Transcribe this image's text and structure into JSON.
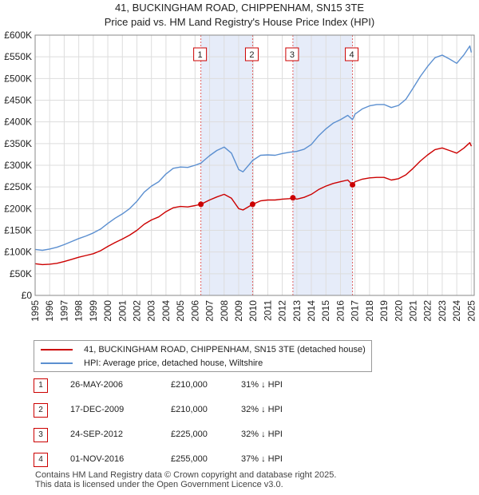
{
  "title_line1": "41, BUCKINGHAM ROAD, CHIPPENHAM, SN15 3TE",
  "title_line2": "Price paid vs. HM Land Registry's House Price Index (HPI)",
  "legend": {
    "red_label": "41, BUCKINGHAM ROAD, CHIPPENHAM, SN15 3TE (detached house)",
    "blue_label": "HPI: Average price, detached house, Wiltshire"
  },
  "colors": {
    "red": "#cc0000",
    "blue": "#5b8fd0",
    "shade": "#dde6f7",
    "grid": "#dddddd"
  },
  "transactions": [
    {
      "num": "1",
      "date": "26-MAY-2006",
      "price": "£210,000",
      "hpi": "31% ↓ HPI"
    },
    {
      "num": "2",
      "date": "17-DEC-2009",
      "price": "£210,000",
      "hpi": "32% ↓ HPI"
    },
    {
      "num": "3",
      "date": "24-SEP-2012",
      "price": "£225,000",
      "hpi": "32% ↓ HPI"
    },
    {
      "num": "4",
      "date": "01-NOV-2016",
      "price": "£255,000",
      "hpi": "37% ↓ HPI"
    }
  ],
  "footer": {
    "line1": "Contains HM Land Registry data © Crown copyright and database right 2025.",
    "line2": "This data is licensed under the Open Government Licence v3.0."
  },
  "chart_data": {
    "type": "line",
    "title": "Price paid vs. HM Land Registry's House Price Index (HPI)",
    "xlim": [
      1995,
      2025.2
    ],
    "ylim": [
      0,
      600000
    ],
    "x_ticks": [
      "1995",
      "1996",
      "1997",
      "1998",
      "1999",
      "2000",
      "2001",
      "2002",
      "2003",
      "2004",
      "2005",
      "2006",
      "2007",
      "2008",
      "2009",
      "2010",
      "2011",
      "2012",
      "2013",
      "2014",
      "2015",
      "2016",
      "2017",
      "2018",
      "2019",
      "2020",
      "2021",
      "2022",
      "2023",
      "2024",
      "2025"
    ],
    "y_ticks": [
      {
        "v": 0,
        "label": "£0"
      },
      {
        "v": 50000,
        "label": "£50K"
      },
      {
        "v": 100000,
        "label": "£100K"
      },
      {
        "v": 150000,
        "label": "£150K"
      },
      {
        "v": 200000,
        "label": "£200K"
      },
      {
        "v": 250000,
        "label": "£250K"
      },
      {
        "v": 300000,
        "label": "£300K"
      },
      {
        "v": 350000,
        "label": "£350K"
      },
      {
        "v": 400000,
        "label": "£400K"
      },
      {
        "v": 450000,
        "label": "£450K"
      },
      {
        "v": 500000,
        "label": "£500K"
      },
      {
        "v": 550000,
        "label": "£550K"
      },
      {
        "v": 600000,
        "label": "£600K"
      }
    ],
    "shaded_regions": [
      [
        2006.4,
        2009.96
      ],
      [
        2012.73,
        2016.83
      ]
    ],
    "series": [
      {
        "name": "HPI: Average price, detached house, Wiltshire",
        "color": "#5b8fd0",
        "x": [
          1995,
          1995.5,
          1996,
          1996.5,
          1997,
          1997.5,
          1998,
          1998.5,
          1999,
          1999.5,
          2000,
          2000.5,
          2001,
          2001.5,
          2002,
          2002.5,
          2003,
          2003.5,
          2004,
          2004.5,
          2005,
          2005.5,
          2006,
          2006.4,
          2007,
          2007.5,
          2008,
          2008.5,
          2009,
          2009.3,
          2009.96,
          2010.5,
          2011,
          2011.5,
          2012,
          2012.5,
          2012.73,
          2013,
          2013.5,
          2014,
          2014.5,
          2015,
          2015.5,
          2016,
          2016.5,
          2016.83,
          2017,
          2017.5,
          2018,
          2018.5,
          2019,
          2019.5,
          2020,
          2020.5,
          2021,
          2021.5,
          2022,
          2022.5,
          2023,
          2023.5,
          2024,
          2024.5,
          2024.9,
          2025
        ],
        "y": [
          106000,
          104000,
          107000,
          111000,
          117000,
          124000,
          131000,
          137000,
          144000,
          153000,
          166000,
          178000,
          188000,
          200000,
          217000,
          238000,
          252000,
          262000,
          280000,
          293000,
          296000,
          295000,
          300000,
          305000,
          322000,
          334000,
          342000,
          328000,
          290000,
          285000,
          311000,
          323000,
          324000,
          323000,
          327000,
          330000,
          331000,
          332000,
          337000,
          348000,
          368000,
          384000,
          397000,
          405000,
          415000,
          405000,
          418000,
          430000,
          437000,
          440000,
          440000,
          433000,
          438000,
          452000,
          478000,
          505000,
          528000,
          548000,
          554000,
          545000,
          535000,
          555000,
          575000,
          560000
        ]
      },
      {
        "name": "41, BUCKINGHAM ROAD, CHIPPENHAM, SN15 3TE (detached house)",
        "color": "#cc0000",
        "x": [
          1995,
          1995.5,
          1996,
          1996.5,
          1997,
          1997.5,
          1998,
          1998.5,
          1999,
          1999.5,
          2000,
          2000.5,
          2001,
          2001.5,
          2002,
          2002.5,
          2003,
          2003.5,
          2004,
          2004.5,
          2005,
          2005.5,
          2006,
          2006.4,
          2007,
          2007.5,
          2008,
          2008.5,
          2009,
          2009.3,
          2009.96,
          2010.5,
          2011,
          2011.5,
          2012,
          2012.5,
          2012.73,
          2013,
          2013.5,
          2014,
          2014.5,
          2015,
          2015.5,
          2016,
          2016.5,
          2016.83,
          2017,
          2017.5,
          2018,
          2018.5,
          2019,
          2019.5,
          2020,
          2020.5,
          2021,
          2021.5,
          2022,
          2022.5,
          2023,
          2023.5,
          2024,
          2024.5,
          2024.9,
          2025
        ],
        "y": [
          73000,
          71000,
          72000,
          74000,
          78000,
          83000,
          88000,
          92000,
          96000,
          103000,
          113000,
          122000,
          130000,
          139000,
          150000,
          164000,
          174000,
          181000,
          193000,
          202000,
          205000,
          204000,
          207000,
          210000,
          220000,
          227000,
          233000,
          224000,
          200000,
          197000,
          210000,
          218000,
          220000,
          220000,
          222000,
          223000,
          225000,
          222000,
          226000,
          233000,
          244000,
          252000,
          258000,
          262000,
          266000,
          255000,
          262000,
          268000,
          271000,
          272000,
          272000,
          266000,
          269000,
          278000,
          293000,
          310000,
          324000,
          336000,
          340000,
          334000,
          328000,
          340000,
          352000,
          344000
        ]
      }
    ],
    "points": [
      {
        "label": "1",
        "x": 2006.4,
        "y": 210000
      },
      {
        "label": "2",
        "x": 2009.96,
        "y": 210000
      },
      {
        "label": "3",
        "x": 2012.73,
        "y": 225000
      },
      {
        "label": "4",
        "x": 2016.83,
        "y": 255000
      }
    ]
  }
}
